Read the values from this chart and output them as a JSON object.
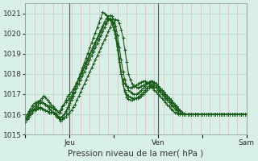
{
  "title": "",
  "xlabel": "Pression niveau de la mer( hPa )",
  "ylim": [
    1015.0,
    1021.5
  ],
  "yticks": [
    1015,
    1016,
    1017,
    1018,
    1019,
    1020,
    1021
  ],
  "bg_color": "#d8f0e8",
  "plot_bg_color": "#d8f0e8",
  "grid_color_v": "#f0b8b8",
  "grid_color_h": "#b8d8c8",
  "line_color": "#1a5c1a",
  "marker": "+",
  "xtick_labels": [
    "",
    "Jeu",
    "",
    "Ven",
    "",
    "Sam"
  ],
  "xtick_positions": [
    0,
    24,
    48,
    72,
    96,
    120
  ],
  "series": [
    [
      1015.8,
      1015.9,
      1016.1,
      1016.2,
      1016.3,
      1016.4,
      1016.5,
      1016.6,
      1016.7,
      1016.8,
      1016.9,
      1016.85,
      1016.7,
      1016.6,
      1016.5,
      1016.4,
      1016.3,
      1016.2,
      1016.1,
      1016.2,
      1016.4,
      1016.5,
      1016.6,
      1016.7,
      1016.8,
      1016.9,
      1017.1,
      1017.3,
      1017.5,
      1017.7,
      1017.9,
      1018.1,
      1018.3,
      1018.5,
      1018.7,
      1018.9,
      1019.1,
      1019.3,
      1019.5,
      1019.7,
      1019.9,
      1020.1,
      1020.3,
      1020.5,
      1020.6,
      1020.7,
      1020.65,
      1020.5,
      1020.2,
      1019.8,
      1019.2,
      1018.6,
      1018.0,
      1017.7,
      1017.5,
      1017.4,
      1017.35,
      1017.3,
      1017.35,
      1017.4,
      1017.45,
      1017.5,
      1017.55,
      1017.6,
      1017.65,
      1017.65,
      1017.6,
      1017.5,
      1017.4,
      1017.3,
      1017.2,
      1017.1,
      1017.0,
      1016.9,
      1016.8,
      1016.7,
      1016.6,
      1016.5,
      1016.4,
      1016.3,
      1016.2,
      1016.1,
      1016.1,
      1016.0,
      1016.0,
      1016.1,
      1016.05,
      1016.0,
      1016.0,
      1016.0,
      1016.0,
      1016.0,
      1016.0,
      1016.0,
      1016.0,
      1016.0,
      1016.0,
      1016.0,
      1016.0,
      1016.0,
      1016.0,
      1016.0,
      1016.0,
      1016.0,
      1016.0,
      1016.0,
      1016.0,
      1016.0,
      1016.0,
      1016.0,
      1016.0,
      1016.0,
      1016.0,
      1016.0,
      1016.0,
      1016.0,
      1016.0,
      1016.0,
      1016.0,
      1016.0,
      1016.0,
      1016.0,
      1016.0,
      1016.0,
      1016.0,
      1016.0
    ],
    [
      1015.8,
      1015.9,
      1016.0,
      1016.1,
      1016.2,
      1016.3,
      1016.4,
      1016.5,
      1016.55,
      1016.6,
      1016.55,
      1016.5,
      1016.4,
      1016.3,
      1016.2,
      1016.1,
      1016.0,
      1015.9,
      1015.8,
      1015.7,
      1015.75,
      1015.8,
      1015.9,
      1016.0,
      1016.1,
      1016.2,
      1016.35,
      1016.5,
      1016.7,
      1016.9,
      1017.1,
      1017.3,
      1017.5,
      1017.7,
      1017.9,
      1018.1,
      1018.3,
      1018.5,
      1018.7,
      1018.9,
      1019.1,
      1019.3,
      1019.5,
      1019.7,
      1019.9,
      1020.1,
      1020.3,
      1020.5,
      1020.6,
      1020.7,
      1020.65,
      1020.5,
      1020.2,
      1019.8,
      1019.2,
      1018.6,
      1018.0,
      1017.7,
      1017.5,
      1017.4,
      1017.35,
      1017.3,
      1017.35,
      1017.4,
      1017.45,
      1017.5,
      1017.55,
      1017.6,
      1017.65,
      1017.65,
      1017.6,
      1017.5,
      1017.4,
      1017.3,
      1017.2,
      1017.1,
      1017.0,
      1016.9,
      1016.8,
      1016.7,
      1016.6,
      1016.5,
      1016.4,
      1016.3,
      1016.2,
      1016.1,
      1016.0,
      1016.0,
      1016.0,
      1016.0,
      1016.0,
      1016.0,
      1016.0,
      1016.0,
      1016.0,
      1016.0,
      1016.0,
      1016.0,
      1016.0,
      1016.0,
      1016.0,
      1016.0,
      1016.0,
      1016.0,
      1016.0,
      1016.0,
      1016.0,
      1016.0,
      1016.0,
      1016.0,
      1016.0,
      1016.0,
      1016.0,
      1016.0,
      1016.0,
      1016.0,
      1016.0,
      1016.0,
      1016.0,
      1016.0,
      1016.0,
      1016.0,
      1016.0,
      1016.0
    ],
    [
      1015.9,
      1016.0,
      1016.15,
      1016.3,
      1016.45,
      1016.55,
      1016.6,
      1016.65,
      1016.65,
      1016.6,
      1016.55,
      1016.5,
      1016.45,
      1016.4,
      1016.35,
      1016.3,
      1016.25,
      1016.2,
      1016.1,
      1016.1,
      1016.3,
      1016.5,
      1016.7,
      1016.9,
      1017.0,
      1017.1,
      1017.25,
      1017.4,
      1017.6,
      1017.8,
      1018.0,
      1018.2,
      1018.4,
      1018.6,
      1018.8,
      1019.0,
      1019.2,
      1019.4,
      1019.6,
      1019.8,
      1020.0,
      1020.2,
      1020.4,
      1020.6,
      1020.75,
      1020.85,
      1020.9,
      1020.85,
      1020.7,
      1020.4,
      1019.9,
      1019.3,
      1018.7,
      1018.1,
      1017.7,
      1017.4,
      1017.2,
      1017.1,
      1017.05,
      1017.0,
      1017.0,
      1017.05,
      1017.1,
      1017.2,
      1017.3,
      1017.4,
      1017.5,
      1017.55,
      1017.6,
      1017.6,
      1017.55,
      1017.5,
      1017.4,
      1017.3,
      1017.2,
      1017.1,
      1017.0,
      1016.9,
      1016.8,
      1016.7,
      1016.6,
      1016.5,
      1016.4,
      1016.3,
      1016.2,
      1016.1,
      1016.0,
      1016.0,
      1016.0,
      1016.0,
      1016.0,
      1016.0,
      1016.0,
      1016.0,
      1016.0,
      1016.0,
      1016.0,
      1016.0,
      1016.0,
      1016.0,
      1016.0,
      1016.0,
      1016.0,
      1016.0,
      1016.0,
      1016.0,
      1016.0,
      1016.0,
      1016.0,
      1016.0,
      1016.0,
      1016.0,
      1016.0,
      1016.0,
      1016.0,
      1016.0,
      1016.0,
      1016.0,
      1016.0,
      1016.0,
      1016.0,
      1016.0,
      1016.0,
      1016.0
    ],
    [
      1015.6,
      1015.75,
      1015.9,
      1016.0,
      1016.1,
      1016.2,
      1016.25,
      1016.3,
      1016.3,
      1016.3,
      1016.25,
      1016.2,
      1016.15,
      1016.1,
      1016.1,
      1016.1,
      1016.1,
      1016.0,
      1015.85,
      1015.7,
      1015.75,
      1015.9,
      1016.1,
      1016.3,
      1016.5,
      1016.7,
      1016.9,
      1017.1,
      1017.3,
      1017.5,
      1017.7,
      1017.9,
      1018.1,
      1018.3,
      1018.5,
      1018.7,
      1018.9,
      1019.1,
      1019.3,
      1019.5,
      1019.7,
      1019.9,
      1020.1,
      1020.3,
      1020.5,
      1020.7,
      1020.75,
      1020.7,
      1020.5,
      1020.1,
      1019.5,
      1018.8,
      1018.1,
      1017.5,
      1017.1,
      1016.85,
      1016.75,
      1016.7,
      1016.7,
      1016.75,
      1016.8,
      1016.85,
      1016.9,
      1017.0,
      1017.1,
      1017.2,
      1017.3,
      1017.4,
      1017.45,
      1017.5,
      1017.45,
      1017.4,
      1017.3,
      1017.2,
      1017.1,
      1017.0,
      1016.9,
      1016.8,
      1016.7,
      1016.6,
      1016.5,
      1016.4,
      1016.3,
      1016.2,
      1016.1,
      1016.0,
      1016.0,
      1016.0,
      1016.0,
      1016.0,
      1016.0,
      1016.0,
      1016.0,
      1016.0,
      1016.0,
      1016.0,
      1016.0,
      1016.0,
      1016.0,
      1016.0,
      1016.0,
      1016.0,
      1016.0,
      1016.0,
      1016.0,
      1016.0,
      1016.0,
      1016.0,
      1016.0,
      1016.0,
      1016.0,
      1016.0,
      1016.0,
      1016.0,
      1016.0,
      1016.0,
      1016.0,
      1016.0,
      1016.0,
      1016.0,
      1016.0,
      1016.0,
      1016.0,
      1016.0
    ],
    [
      1015.7,
      1015.8,
      1015.95,
      1016.1,
      1016.2,
      1016.25,
      1016.3,
      1016.35,
      1016.35,
      1016.3,
      1016.25,
      1016.2,
      1016.15,
      1016.1,
      1016.1,
      1016.1,
      1016.05,
      1016.0,
      1015.9,
      1015.85,
      1015.9,
      1016.0,
      1016.15,
      1016.35,
      1016.55,
      1016.8,
      1017.05,
      1017.3,
      1017.55,
      1017.8,
      1018.05,
      1018.3,
      1018.55,
      1018.8,
      1019.05,
      1019.3,
      1019.55,
      1019.8,
      1020.05,
      1020.3,
      1020.55,
      1020.8,
      1021.05,
      1021.0,
      1020.9,
      1020.8,
      1020.7,
      1020.6,
      1020.4,
      1020.0,
      1019.4,
      1018.7,
      1018.0,
      1017.5,
      1017.2,
      1017.0,
      1016.9,
      1016.85,
      1016.8,
      1016.8,
      1016.8,
      1016.8,
      1016.85,
      1016.9,
      1017.0,
      1017.1,
      1017.2,
      1017.3,
      1017.35,
      1017.4,
      1017.35,
      1017.3,
      1017.2,
      1017.1,
      1017.0,
      1016.9,
      1016.8,
      1016.7,
      1016.6,
      1016.5,
      1016.4,
      1016.3,
      1016.2,
      1016.1,
      1016.0,
      1016.0,
      1016.0,
      1016.0,
      1016.0,
      1016.0,
      1016.0,
      1016.0,
      1016.0,
      1016.0,
      1016.0,
      1016.0,
      1016.0,
      1016.0,
      1016.0,
      1016.0,
      1016.0,
      1016.0,
      1016.0,
      1016.0,
      1016.0,
      1016.0,
      1016.0,
      1016.0,
      1016.0,
      1016.0,
      1016.0,
      1016.0,
      1016.0,
      1016.0,
      1016.0,
      1016.0,
      1016.0,
      1016.0,
      1016.0,
      1016.0,
      1016.0,
      1016.0,
      1016.0,
      1016.0
    ]
  ]
}
